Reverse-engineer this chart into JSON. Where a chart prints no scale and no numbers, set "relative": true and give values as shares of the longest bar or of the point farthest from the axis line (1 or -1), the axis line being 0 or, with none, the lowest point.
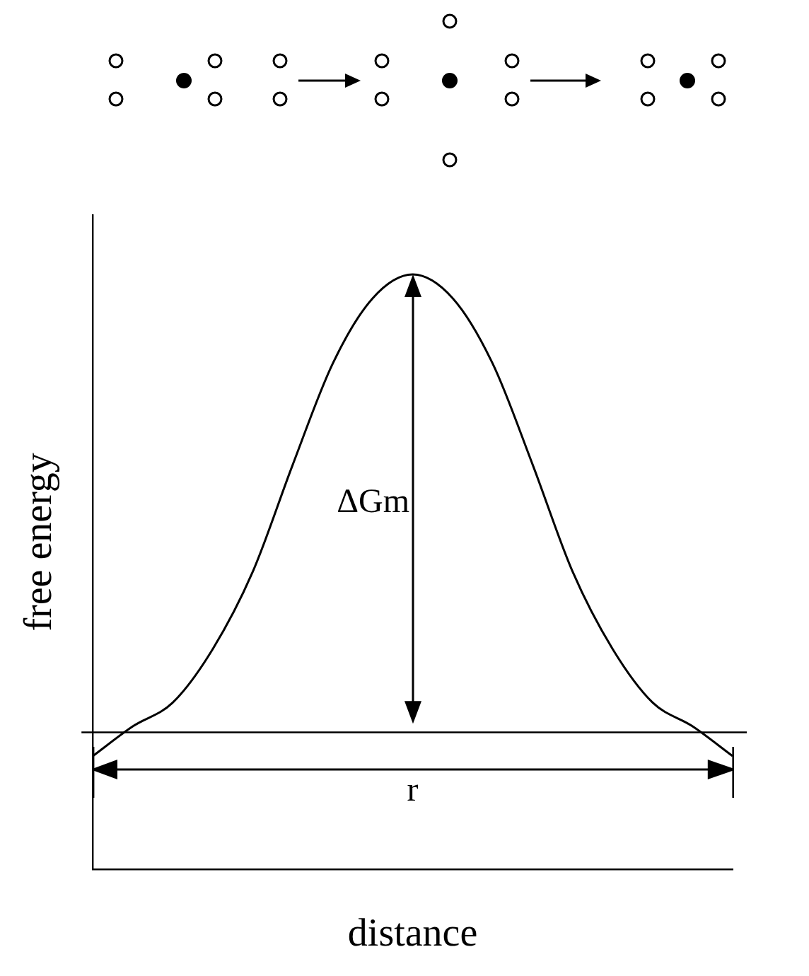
{
  "chart_data": {
    "type": "line",
    "relative": true,
    "xlabel": "distance",
    "ylabel": "free energy",
    "categories": [
      null,
      null,
      null,
      null,
      null,
      null,
      null,
      null,
      null,
      null,
      null,
      null,
      null,
      null,
      null,
      null,
      null
    ],
    "series": [
      {
        "color": "#000000",
        "values": [
          0.19,
          0.24,
          0.28,
          0.37,
          0.5,
          0.68,
          0.85,
          0.96,
          1,
          0.96,
          0.85,
          0.68,
          0.5,
          0.37,
          0.28,
          0.24,
          0.19
        ]
      }
    ],
    "ref_lines": [
      {
        "axis": "y",
        "value": 0.23,
        "color": "#000000"
      }
    ],
    "annotations": [
      "ΔGm",
      "r"
    ],
    "marker": "none",
    "legend": false,
    "grid": false
  }
}
